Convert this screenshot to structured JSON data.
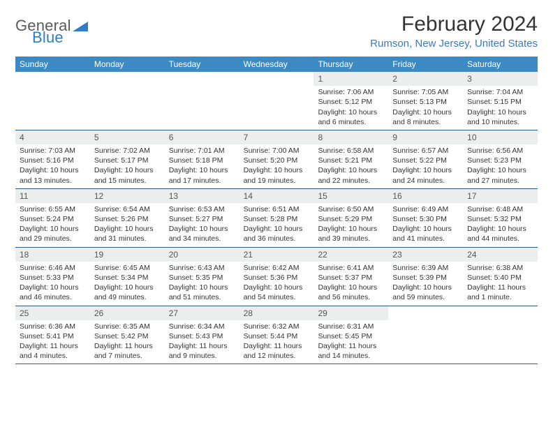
{
  "logo": {
    "word1": "General",
    "word2": "Blue"
  },
  "title": "February 2024",
  "location": "Rumson, New Jersey, United States",
  "colors": {
    "header_bg": "#3b8ac4",
    "header_text": "#ffffff",
    "daynum_bg": "#eceded",
    "week_border": "#2a5d86",
    "location_color": "#3a7bbf",
    "logo_gray": "#5a5a5a",
    "logo_blue": "#2d7dc7"
  },
  "day_names": [
    "Sunday",
    "Monday",
    "Tuesday",
    "Wednesday",
    "Thursday",
    "Friday",
    "Saturday"
  ],
  "weeks": [
    [
      {
        "empty": true
      },
      {
        "empty": true
      },
      {
        "empty": true
      },
      {
        "empty": true
      },
      {
        "day": "1",
        "sunrise": "Sunrise: 7:06 AM",
        "sunset": "Sunset: 5:12 PM",
        "dl1": "Daylight: 10 hours",
        "dl2": "and 6 minutes."
      },
      {
        "day": "2",
        "sunrise": "Sunrise: 7:05 AM",
        "sunset": "Sunset: 5:13 PM",
        "dl1": "Daylight: 10 hours",
        "dl2": "and 8 minutes."
      },
      {
        "day": "3",
        "sunrise": "Sunrise: 7:04 AM",
        "sunset": "Sunset: 5:15 PM",
        "dl1": "Daylight: 10 hours",
        "dl2": "and 10 minutes."
      }
    ],
    [
      {
        "day": "4",
        "sunrise": "Sunrise: 7:03 AM",
        "sunset": "Sunset: 5:16 PM",
        "dl1": "Daylight: 10 hours",
        "dl2": "and 13 minutes."
      },
      {
        "day": "5",
        "sunrise": "Sunrise: 7:02 AM",
        "sunset": "Sunset: 5:17 PM",
        "dl1": "Daylight: 10 hours",
        "dl2": "and 15 minutes."
      },
      {
        "day": "6",
        "sunrise": "Sunrise: 7:01 AM",
        "sunset": "Sunset: 5:18 PM",
        "dl1": "Daylight: 10 hours",
        "dl2": "and 17 minutes."
      },
      {
        "day": "7",
        "sunrise": "Sunrise: 7:00 AM",
        "sunset": "Sunset: 5:20 PM",
        "dl1": "Daylight: 10 hours",
        "dl2": "and 19 minutes."
      },
      {
        "day": "8",
        "sunrise": "Sunrise: 6:58 AM",
        "sunset": "Sunset: 5:21 PM",
        "dl1": "Daylight: 10 hours",
        "dl2": "and 22 minutes."
      },
      {
        "day": "9",
        "sunrise": "Sunrise: 6:57 AM",
        "sunset": "Sunset: 5:22 PM",
        "dl1": "Daylight: 10 hours",
        "dl2": "and 24 minutes."
      },
      {
        "day": "10",
        "sunrise": "Sunrise: 6:56 AM",
        "sunset": "Sunset: 5:23 PM",
        "dl1": "Daylight: 10 hours",
        "dl2": "and 27 minutes."
      }
    ],
    [
      {
        "day": "11",
        "sunrise": "Sunrise: 6:55 AM",
        "sunset": "Sunset: 5:24 PM",
        "dl1": "Daylight: 10 hours",
        "dl2": "and 29 minutes."
      },
      {
        "day": "12",
        "sunrise": "Sunrise: 6:54 AM",
        "sunset": "Sunset: 5:26 PM",
        "dl1": "Daylight: 10 hours",
        "dl2": "and 31 minutes."
      },
      {
        "day": "13",
        "sunrise": "Sunrise: 6:53 AM",
        "sunset": "Sunset: 5:27 PM",
        "dl1": "Daylight: 10 hours",
        "dl2": "and 34 minutes."
      },
      {
        "day": "14",
        "sunrise": "Sunrise: 6:51 AM",
        "sunset": "Sunset: 5:28 PM",
        "dl1": "Daylight: 10 hours",
        "dl2": "and 36 minutes."
      },
      {
        "day": "15",
        "sunrise": "Sunrise: 6:50 AM",
        "sunset": "Sunset: 5:29 PM",
        "dl1": "Daylight: 10 hours",
        "dl2": "and 39 minutes."
      },
      {
        "day": "16",
        "sunrise": "Sunrise: 6:49 AM",
        "sunset": "Sunset: 5:30 PM",
        "dl1": "Daylight: 10 hours",
        "dl2": "and 41 minutes."
      },
      {
        "day": "17",
        "sunrise": "Sunrise: 6:48 AM",
        "sunset": "Sunset: 5:32 PM",
        "dl1": "Daylight: 10 hours",
        "dl2": "and 44 minutes."
      }
    ],
    [
      {
        "day": "18",
        "sunrise": "Sunrise: 6:46 AM",
        "sunset": "Sunset: 5:33 PM",
        "dl1": "Daylight: 10 hours",
        "dl2": "and 46 minutes."
      },
      {
        "day": "19",
        "sunrise": "Sunrise: 6:45 AM",
        "sunset": "Sunset: 5:34 PM",
        "dl1": "Daylight: 10 hours",
        "dl2": "and 49 minutes."
      },
      {
        "day": "20",
        "sunrise": "Sunrise: 6:43 AM",
        "sunset": "Sunset: 5:35 PM",
        "dl1": "Daylight: 10 hours",
        "dl2": "and 51 minutes."
      },
      {
        "day": "21",
        "sunrise": "Sunrise: 6:42 AM",
        "sunset": "Sunset: 5:36 PM",
        "dl1": "Daylight: 10 hours",
        "dl2": "and 54 minutes."
      },
      {
        "day": "22",
        "sunrise": "Sunrise: 6:41 AM",
        "sunset": "Sunset: 5:37 PM",
        "dl1": "Daylight: 10 hours",
        "dl2": "and 56 minutes."
      },
      {
        "day": "23",
        "sunrise": "Sunrise: 6:39 AM",
        "sunset": "Sunset: 5:39 PM",
        "dl1": "Daylight: 10 hours",
        "dl2": "and 59 minutes."
      },
      {
        "day": "24",
        "sunrise": "Sunrise: 6:38 AM",
        "sunset": "Sunset: 5:40 PM",
        "dl1": "Daylight: 11 hours",
        "dl2": "and 1 minute."
      }
    ],
    [
      {
        "day": "25",
        "sunrise": "Sunrise: 6:36 AM",
        "sunset": "Sunset: 5:41 PM",
        "dl1": "Daylight: 11 hours",
        "dl2": "and 4 minutes."
      },
      {
        "day": "26",
        "sunrise": "Sunrise: 6:35 AM",
        "sunset": "Sunset: 5:42 PM",
        "dl1": "Daylight: 11 hours",
        "dl2": "and 7 minutes."
      },
      {
        "day": "27",
        "sunrise": "Sunrise: 6:34 AM",
        "sunset": "Sunset: 5:43 PM",
        "dl1": "Daylight: 11 hours",
        "dl2": "and 9 minutes."
      },
      {
        "day": "28",
        "sunrise": "Sunrise: 6:32 AM",
        "sunset": "Sunset: 5:44 PM",
        "dl1": "Daylight: 11 hours",
        "dl2": "and 12 minutes."
      },
      {
        "day": "29",
        "sunrise": "Sunrise: 6:31 AM",
        "sunset": "Sunset: 5:45 PM",
        "dl1": "Daylight: 11 hours",
        "dl2": "and 14 minutes."
      },
      {
        "empty": true
      },
      {
        "empty": true
      }
    ]
  ]
}
